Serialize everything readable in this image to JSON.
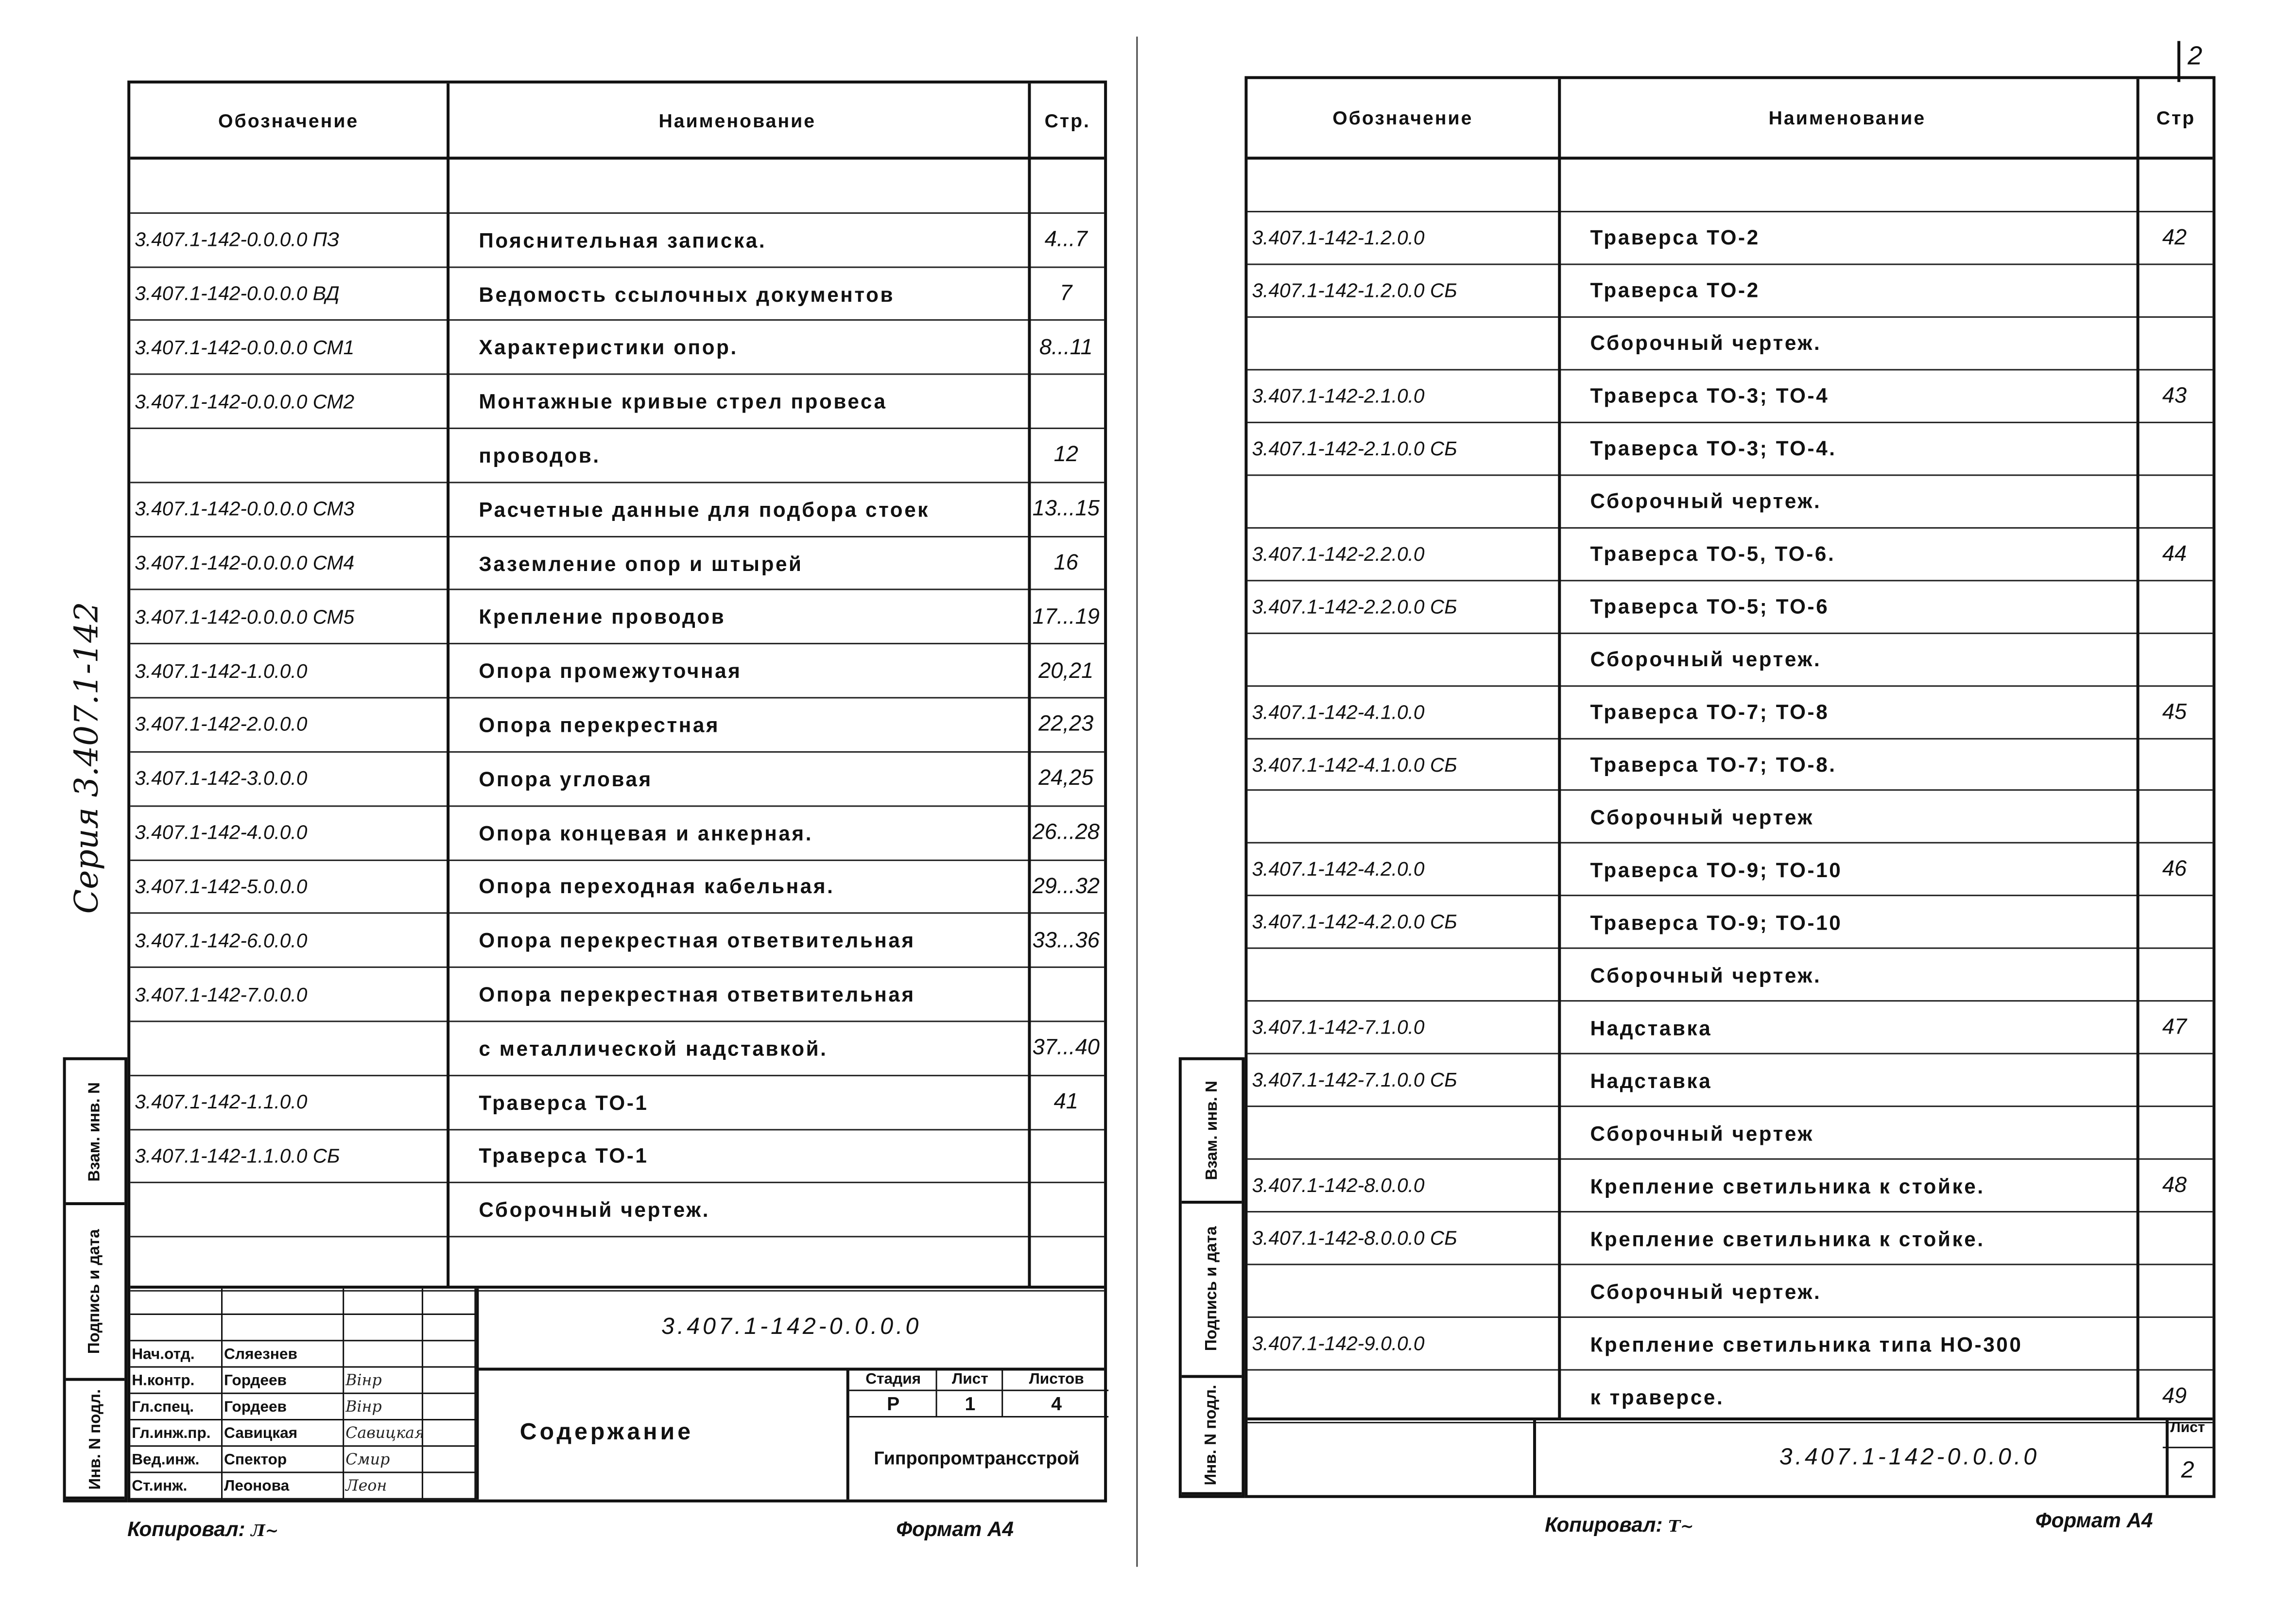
{
  "left_sheet": {
    "headers": {
      "designation": "Обозначение",
      "name": "Наименование",
      "page": "Стр."
    },
    "series_label": "Серия 3.407.1-142",
    "rows": [
      {
        "designation": "",
        "name": "",
        "page": ""
      },
      {
        "designation": "3.407.1-142-0.0.0.0 ПЗ",
        "name": "Пояснительная записка.",
        "page": "4...7"
      },
      {
        "designation": "3.407.1-142-0.0.0.0 ВД",
        "name": "Ведомость ссылочных документов",
        "page": "7"
      },
      {
        "designation": "3.407.1-142-0.0.0.0 СМ1",
        "name": "Характеристики опор.",
        "page": "8...11"
      },
      {
        "designation": "3.407.1-142-0.0.0.0 СМ2",
        "name": "Монтажные кривые стрел провеса",
        "page": ""
      },
      {
        "designation": "",
        "name": "проводов.",
        "page": "12"
      },
      {
        "designation": "3.407.1-142-0.0.0.0 СМ3",
        "name": "Расчетные данные для подбора стоек",
        "page": "13...15"
      },
      {
        "designation": "3.407.1-142-0.0.0.0 СМ4",
        "name": "Заземление опор и штырей",
        "page": "16"
      },
      {
        "designation": "3.407.1-142-0.0.0.0 СМ5",
        "name": "Крепление проводов",
        "page": "17...19"
      },
      {
        "designation": "3.407.1-142-1.0.0.0",
        "name": "Опора промежуточная",
        "page": "20,21"
      },
      {
        "designation": "3.407.1-142-2.0.0.0",
        "name": "Опора перекрестная",
        "page": "22,23"
      },
      {
        "designation": "3.407.1-142-3.0.0.0",
        "name": "Опора угловая",
        "page": "24,25"
      },
      {
        "designation": "3.407.1-142-4.0.0.0",
        "name": "Опора концевая и анкерная.",
        "page": "26...28"
      },
      {
        "designation": "3.407.1-142-5.0.0.0",
        "name": "Опора переходная кабельная.",
        "page": "29...32"
      },
      {
        "designation": "3.407.1-142-6.0.0.0",
        "name": "Опора перекрестная ответвительная",
        "page": "33...36"
      },
      {
        "designation": "3.407.1-142-7.0.0.0",
        "name": "Опора перекрестная ответвительная",
        "page": ""
      },
      {
        "designation": "",
        "name": "с металлической надставкой.",
        "page": "37...40"
      },
      {
        "designation": "3.407.1-142-1.1.0.0",
        "name": "Траверса ТО-1",
        "page": "41"
      },
      {
        "designation": "3.407.1-142-1.1.0.0 СБ",
        "name": "Траверса ТО-1",
        "page": ""
      },
      {
        "designation": "",
        "name": "Сборочный чертеж.",
        "page": ""
      },
      {
        "designation": "",
        "name": "",
        "page": ""
      }
    ],
    "title_block": {
      "document_code": "3.407.1-142-0.0.0.0",
      "title": "Содержание",
      "stage_label": "Стадия",
      "sheet_label": "Лист",
      "sheets_label": "Листов",
      "stage": "Р",
      "sheet": "1",
      "sheets": "4",
      "organization": "Гипропромтрансстрой",
      "signatories": [
        {
          "role": "Нач.отд.",
          "name": "Сляезнев",
          "signature": ""
        },
        {
          "role": "Н.контр.",
          "name": "Гордеев",
          "signature": "Вінр"
        },
        {
          "role": "Гл.спец.",
          "name": "Гордеев",
          "signature": "Вінр"
        },
        {
          "role": "Гл.инж.пр.",
          "name": "Савицкая",
          "signature": "Савицкая"
        },
        {
          "role": "Вед.инж.",
          "name": "Спектор",
          "signature": "Смир"
        },
        {
          "role": "Ст.инж.",
          "name": "Леонова",
          "signature": "Леон"
        }
      ]
    },
    "strip": [
      "Взам. инв. N",
      "Подпись и дата",
      "Инв. N подл."
    ],
    "copied_by": "Копировал:",
    "format": "Формат А4"
  },
  "right_sheet": {
    "page_number": "2",
    "headers": {
      "designation": "Обозначение",
      "name": "Наименование",
      "page": "Стр"
    },
    "rows": [
      {
        "designation": "",
        "name": "",
        "page": ""
      },
      {
        "designation": "3.407.1-142-1.2.0.0",
        "name": "Траверса ТО-2",
        "page": "42"
      },
      {
        "designation": "3.407.1-142-1.2.0.0 СБ",
        "name": "Траверса ТО-2",
        "page": ""
      },
      {
        "designation": "",
        "name": "Сборочный чертеж.",
        "page": ""
      },
      {
        "designation": "3.407.1-142-2.1.0.0",
        "name": "Траверса ТО-3; ТО-4",
        "page": "43"
      },
      {
        "designation": "3.407.1-142-2.1.0.0 СБ",
        "name": "Траверса ТО-3; ТО-4.",
        "page": ""
      },
      {
        "designation": "",
        "name": "Сборочный чертеж.",
        "page": ""
      },
      {
        "designation": "3.407.1-142-2.2.0.0",
        "name": "Траверса ТО-5, ТО-6.",
        "page": "44"
      },
      {
        "designation": "3.407.1-142-2.2.0.0 СБ",
        "name": "Траверса ТО-5; ТО-6",
        "page": ""
      },
      {
        "designation": "",
        "name": "Сборочный чертеж.",
        "page": ""
      },
      {
        "designation": "3.407.1-142-4.1.0.0",
        "name": "Траверса ТО-7; ТО-8",
        "page": "45"
      },
      {
        "designation": "3.407.1-142-4.1.0.0 СБ",
        "name": "Траверса ТО-7; ТО-8.",
        "page": ""
      },
      {
        "designation": "",
        "name": "Сборочный чертеж",
        "page": ""
      },
      {
        "designation": "3.407.1-142-4.2.0.0",
        "name": "Траверса ТО-9; ТО-10",
        "page": "46"
      },
      {
        "designation": "3.407.1-142-4.2.0.0 СБ",
        "name": "Траверса ТО-9; ТО-10",
        "page": ""
      },
      {
        "designation": "",
        "name": "Сборочный чертеж.",
        "page": ""
      },
      {
        "designation": "3.407.1-142-7.1.0.0",
        "name": "Надставка",
        "page": "47"
      },
      {
        "designation": "3.407.1-142-7.1.0.0 СБ",
        "name": "Надставка",
        "page": ""
      },
      {
        "designation": "",
        "name": "Сборочный чертеж",
        "page": ""
      },
      {
        "designation": "3.407.1-142-8.0.0.0",
        "name": "Крепление светильника к стойке.",
        "page": "48"
      },
      {
        "designation": "3.407.1-142-8.0.0.0 СБ",
        "name": "Крепление светильника к стойке.",
        "page": ""
      },
      {
        "designation": "",
        "name": "Сборочный чертеж.",
        "page": ""
      },
      {
        "designation": "3.407.1-142-9.0.0.0",
        "name": "Крепление светильника типа НО-300",
        "page": ""
      },
      {
        "designation": "",
        "name": "к траверсе.",
        "page": "49"
      }
    ],
    "title_block": {
      "document_code": "3.407.1-142-0.0.0.0",
      "sheet_label": "Лист",
      "sheet": "2"
    },
    "strip": [
      "Взам. инв. N",
      "Подпись и дата",
      "Инв. N подл."
    ],
    "copied_by": "Копировал:",
    "format": "Формат А4"
  }
}
